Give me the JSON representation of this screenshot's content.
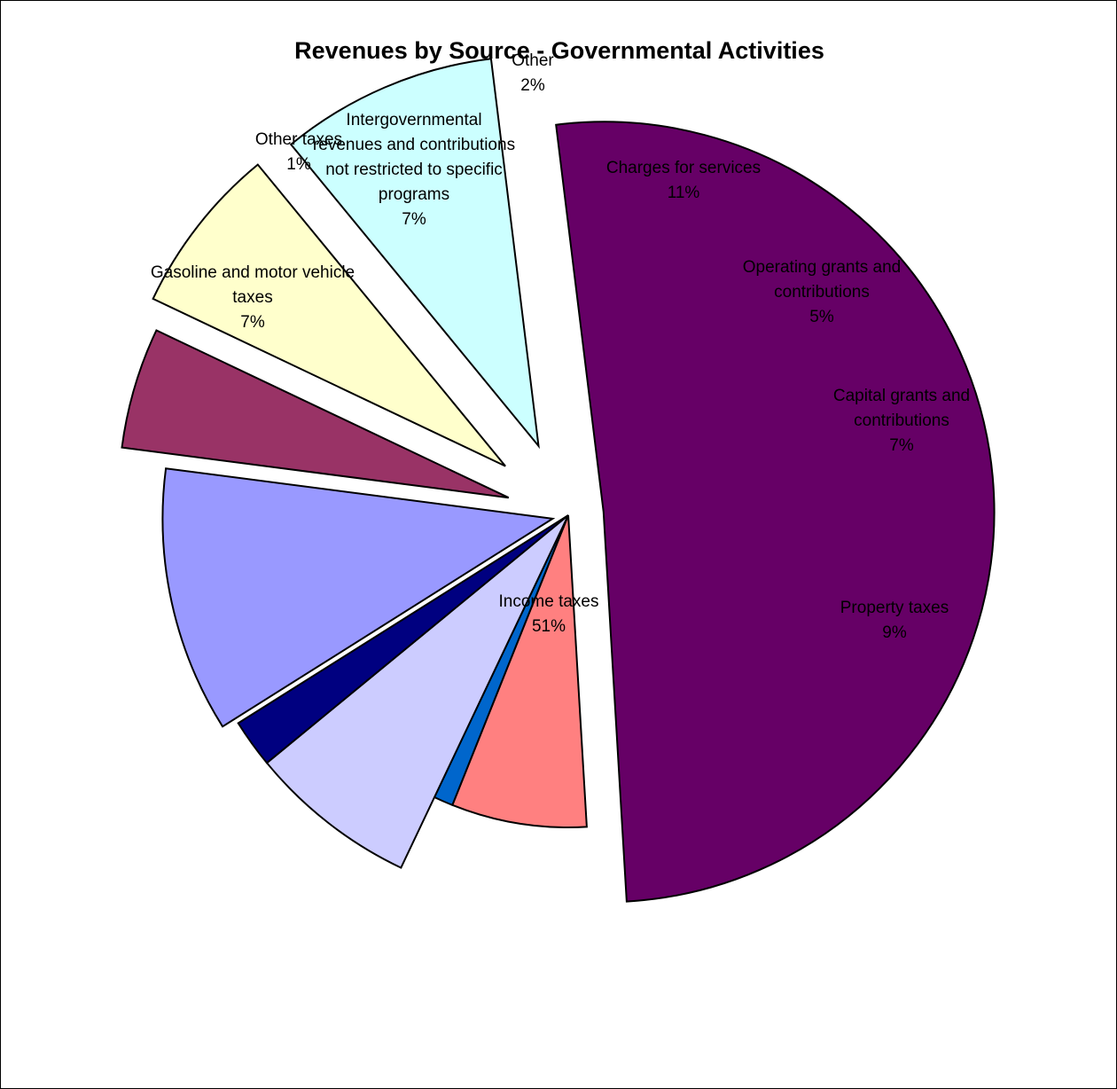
{
  "chart_data": {
    "type": "pie",
    "title": "Revenues by Source - Governmental Activities",
    "exploded": true,
    "slices": [
      {
        "name": "Income taxes",
        "label": [
          "Income taxes"
        ],
        "percent_label": "51%",
        "value": 51,
        "color": "#660066"
      },
      {
        "name": "Gasoline and motor vehicle taxes",
        "label": [
          "Gasoline and motor vehicle",
          "taxes"
        ],
        "percent_label": "7%",
        "value": 7,
        "color": "#ff8080"
      },
      {
        "name": "Other taxes",
        "label": [
          "Other taxes"
        ],
        "percent_label": "1%",
        "value": 1,
        "color": "#0066cc"
      },
      {
        "name": "Intergovernmental revenues and contributions not restricted to specific programs",
        "label": [
          "Intergovernmental",
          "revenues and contributions",
          "not restricted to specific",
          "programs"
        ],
        "percent_label": "7%",
        "value": 7,
        "color": "#ccccff"
      },
      {
        "name": "Other",
        "label": [
          "Other"
        ],
        "percent_label": "2%",
        "value": 2,
        "color": "#000080"
      },
      {
        "name": "Charges for services",
        "label": [
          "Charges for services"
        ],
        "percent_label": "11%",
        "value": 11,
        "color": "#9999ff"
      },
      {
        "name": "Operating grants and contributions",
        "label": [
          "Operating grants and",
          "contributions"
        ],
        "percent_label": "5%",
        "value": 5,
        "color": "#993366"
      },
      {
        "name": "Capital grants and contributions",
        "label": [
          "Capital grants and",
          "contributions"
        ],
        "percent_label": "7%",
        "value": 7,
        "color": "#ffffcc"
      },
      {
        "name": "Property taxes",
        "label": [
          "Property taxes"
        ],
        "percent_label": "9%",
        "value": 9,
        "color": "#ccffff"
      }
    ]
  }
}
